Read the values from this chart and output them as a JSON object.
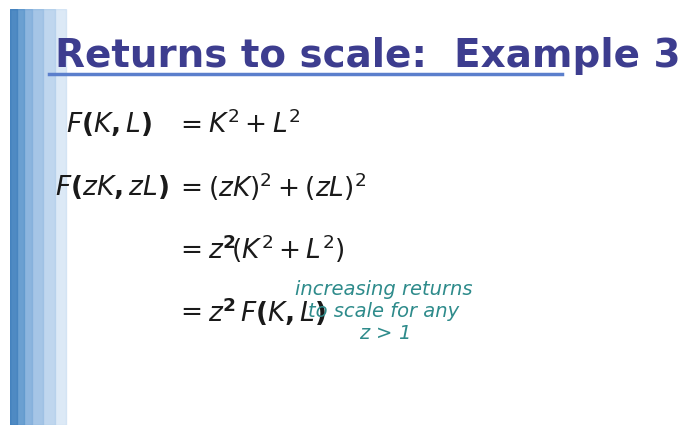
{
  "title": "Returns to scale:  Example 3",
  "title_color": "#3d3d8f",
  "title_fontsize": 28,
  "line_color": "#5b7fcc",
  "bg_color": "#ffffff",
  "annotation": "increasing returns\nto scale for any\n$\\mathit{z}$ > 1",
  "annotation_color": "#2e8b8b",
  "eq_color": "#1a1a1a",
  "eq_fontsize": 19,
  "annotation_fontsize": 14
}
